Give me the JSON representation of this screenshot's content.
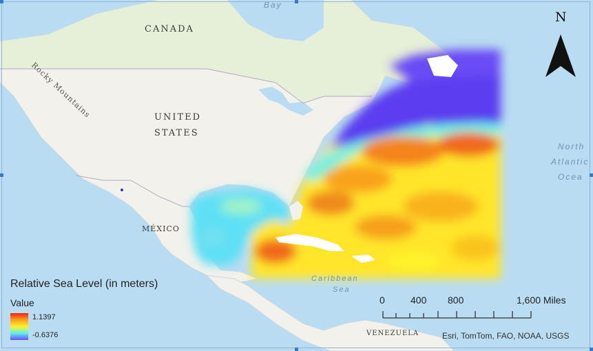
{
  "map": {
    "places": {
      "canada": "CANADA",
      "us_line1": "UNITED",
      "us_line2": "STATES",
      "mexico": "MÉXICO",
      "venezuela": "VENEZUELA",
      "rockies": "Rocky Mountains"
    },
    "water": {
      "bay": "Bay",
      "north_atlantic_1": "North",
      "north_atlantic_2": "Atlantic",
      "north_atlantic_3": "Ocea",
      "caribbean_1": "Caribbean",
      "caribbean_2": "Sea"
    },
    "colors": {
      "ocean": "#b9dcf2",
      "land": "#f2f1ec",
      "canada_land": "#e6efd7",
      "border": "#b7a8c4"
    }
  },
  "legend": {
    "title": "Relative Sea Level (in meters)",
    "field": "Value",
    "max": "1.1397",
    "min": "-0.6376",
    "ramp_colors": [
      "#f0201a",
      "#f9a21a",
      "#fff22a",
      "#5df0f0",
      "#6b4cf5"
    ]
  },
  "scalebar": {
    "ticks": [
      "0",
      "400",
      "800",
      "1,600 Miles"
    ]
  },
  "north_arrow": {
    "label": "N"
  },
  "attribution": "Esri, TomTom, FAO, NOAA, USGS"
}
